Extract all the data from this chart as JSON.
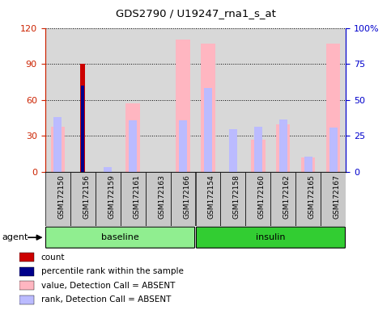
{
  "title": "GDS2790 / U19247_rna1_s_at",
  "samples": [
    "GSM172150",
    "GSM172156",
    "GSM172159",
    "GSM172161",
    "GSM172163",
    "GSM172166",
    "GSM172154",
    "GSM172158",
    "GSM172160",
    "GSM172162",
    "GSM172165",
    "GSM172167"
  ],
  "groups": [
    {
      "name": "baseline",
      "start": 0,
      "end": 6,
      "color": "#90EE90"
    },
    {
      "name": "insulin",
      "start": 6,
      "end": 12,
      "color": "#32CD32"
    }
  ],
  "left_ylim": [
    0,
    120
  ],
  "right_ylim": [
    0,
    100
  ],
  "left_yticks": [
    0,
    30,
    60,
    90,
    120
  ],
  "right_yticks": [
    0,
    25,
    50,
    75,
    100
  ],
  "right_yticklabels": [
    "0",
    "25",
    "50",
    "75",
    "100%"
  ],
  "left_tick_color": "#CC2200",
  "right_tick_color": "#0000CC",
  "count_bars": [
    0,
    90,
    0,
    0,
    0,
    0,
    0,
    0,
    0,
    0,
    0,
    0
  ],
  "count_color": "#CC0000",
  "percentile_rank_bars": [
    0,
    60,
    0,
    0,
    0,
    0,
    0,
    0,
    0,
    0,
    0,
    0
  ],
  "percentile_rank_color": "#00008B",
  "value_absent_bars": [
    38,
    0,
    0,
    57,
    0,
    110,
    107,
    0,
    27,
    40,
    12,
    107
  ],
  "value_absent_color": "#FFB6C1",
  "rank_absent_bars": [
    46,
    0,
    4,
    43,
    0,
    43,
    70,
    36,
    38,
    44,
    13,
    37
  ],
  "rank_absent_color": "#BBBBFF",
  "background_color": "#FFFFFF",
  "plot_bg_color": "#D8D8D8",
  "label_box_color": "#C8C8C8",
  "legend_items": [
    {
      "color": "#CC0000",
      "label": "count"
    },
    {
      "color": "#00008B",
      "label": "percentile rank within the sample"
    },
    {
      "color": "#FFB6C1",
      "label": "value, Detection Call = ABSENT"
    },
    {
      "color": "#BBBBFF",
      "label": "rank, Detection Call = ABSENT"
    }
  ]
}
